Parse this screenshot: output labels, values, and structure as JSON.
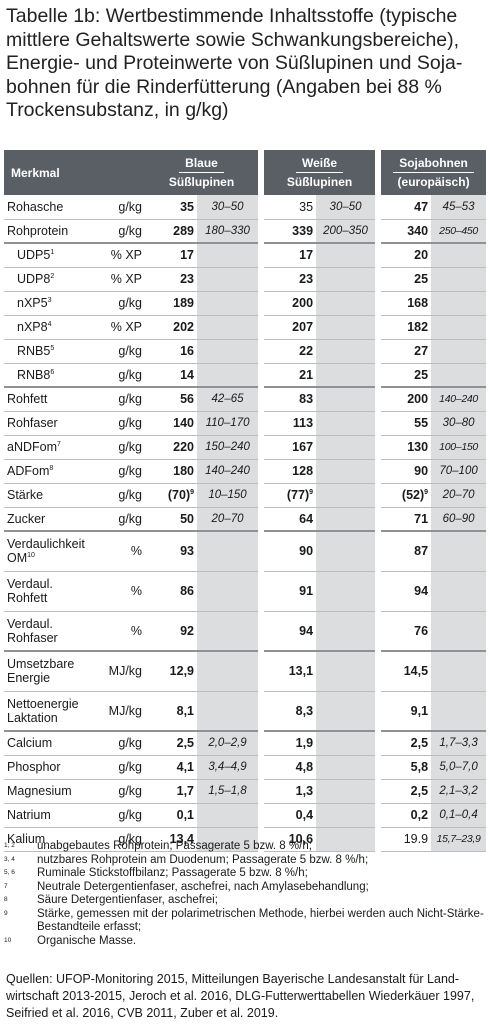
{
  "title": "Tabelle 1b: Wertbestimmende Inhaltsstoffe (typische mittlere Gehaltswerte sowie Schwankungsbereiche), Energie- und Proteinwerte von Süßlupinen und Soja-bohnen für die Rinderfütterung (Angaben bei 88 % Trockensubstanz, in g/kg)",
  "header": {
    "merkmal": "Merkmal",
    "col1_line1": "Blaue",
    "col1_line2": "Süßlupinen",
    "col2_line1": "Weiße",
    "col2_line2": "Süßlupinen",
    "col3_line1": "Sojabohnen",
    "col3_line2": "(europäisch)"
  },
  "rows": [
    {
      "name": "Rohasche",
      "unit": "g/kg",
      "v1": "35",
      "r1": "30–50",
      "v2": "35",
      "r2": "30–50",
      "v3": "47",
      "r3": "45–53"
    },
    {
      "name": "Rohprotein",
      "unit": "g/kg",
      "v1": "289",
      "r1": "180–330",
      "v2": "339",
      "r2": "200–350",
      "v3": "340",
      "r3": "250–450"
    },
    {
      "name": "UDP5",
      "sup": "1",
      "unit": "% XP",
      "v1": "17",
      "r1": "",
      "v2": "17",
      "r2": "",
      "v3": "20",
      "r3": ""
    },
    {
      "name": "UDP8",
      "sup": "2",
      "unit": "% XP",
      "v1": "23",
      "r1": "",
      "v2": "23",
      "r2": "",
      "v3": "25",
      "r3": ""
    },
    {
      "name": "nXP5",
      "sup": "3",
      "unit": "g/kg",
      "v1": "189",
      "r1": "",
      "v2": "200",
      "r2": "",
      "v3": "168",
      "r3": ""
    },
    {
      "name": "nXP8",
      "sup": "4",
      "unit": "% XP",
      "v1": "202",
      "r1": "",
      "v2": "207",
      "r2": "",
      "v3": "182",
      "r3": ""
    },
    {
      "name": "RNB5",
      "sup": "5",
      "unit": "g/kg",
      "v1": "16",
      "r1": "",
      "v2": "22",
      "r2": "",
      "v3": "27",
      "r3": ""
    },
    {
      "name": "RNB8",
      "sup": "6",
      "unit": "g/kg",
      "v1": "14",
      "r1": "",
      "v2": "21",
      "r2": "",
      "v3": "25",
      "r3": ""
    },
    {
      "name": "Rohfett",
      "unit": "g/kg",
      "v1": "56",
      "r1": "42–65",
      "v2": "83",
      "r2": "",
      "v3": "200",
      "r3": "140–240"
    },
    {
      "name": "Rohfaser",
      "unit": "g/kg",
      "v1": "140",
      "r1": "110–170",
      "v2": "113",
      "r2": "",
      "v3": "55",
      "r3": "30–80"
    },
    {
      "name": "aNDFom",
      "sup": "7",
      "unit": "g/kg",
      "v1": "220",
      "r1": "150–240",
      "v2": "167",
      "r2": "",
      "v3": "130",
      "r3": "100–150"
    },
    {
      "name": "ADFom",
      "sup": "8",
      "unit": "g/kg",
      "v1": "180",
      "r1": "140–240",
      "v2": "128",
      "r2": "",
      "v3": "90",
      "r3": "70–100"
    },
    {
      "name": "Stärke",
      "unit": "g/kg",
      "v1": "(70)",
      "v1sup": "9",
      "r1": "10–150",
      "v2": "(77)",
      "v2sup": "9",
      "r2": "",
      "v3": "(52)",
      "v3sup": "9",
      "r3": "20–70"
    },
    {
      "name": "Zucker",
      "unit": "g/kg",
      "v1": "50",
      "r1": "20–70",
      "v2": "64",
      "r2": "",
      "v3": "71",
      "r3": "60–90"
    },
    {
      "name": "Verdaulichkeit",
      "name2": "OM",
      "sup2": "10",
      "unit": "%",
      "v1": "93",
      "r1": "",
      "v2": "90",
      "r2": "",
      "v3": "87",
      "r3": ""
    },
    {
      "name": "Verdaul.",
      "name2": "Rohfett",
      "unit": "%",
      "v1": "86",
      "r1": "",
      "v2": "91",
      "r2": "",
      "v3": "94",
      "r3": ""
    },
    {
      "name": "Verdaul.",
      "name2": "Rohfaser",
      "unit": "%",
      "v1": "92",
      "r1": "",
      "v2": "94",
      "r2": "",
      "v3": "76",
      "r3": ""
    },
    {
      "name": "Umsetzbare",
      "name2": "Energie",
      "unit": "MJ/kg",
      "v1": "12,9",
      "r1": "",
      "v2": "13,1",
      "r2": "",
      "v3": "14,5",
      "r3": ""
    },
    {
      "name": "Nettoenergie",
      "name2": "Laktation",
      "unit": "MJ/kg",
      "v1": "8,1",
      "r1": "",
      "v2": "8,3",
      "r2": "",
      "v3": "9,1",
      "r3": ""
    },
    {
      "name": "Calcium",
      "unit": "g/kg",
      "v1": "2,5",
      "r1": "2,0–2,9",
      "v2": "1,9",
      "r2": "",
      "v3": "2,5",
      "r3": "1,7–3,3"
    },
    {
      "name": "Phosphor",
      "unit": "g/kg",
      "v1": "4,1",
      "r1": "3,4–4,9",
      "v2": "4,8",
      "r2": "",
      "v3": "5,8",
      "r3": "5,0–7,0"
    },
    {
      "name": "Magnesium",
      "unit": "g/kg",
      "v1": "1,7",
      "r1": "1,5–1,8",
      "v2": "1,3",
      "r2": "",
      "v3": "2,5",
      "r3": "2,1–3,2"
    },
    {
      "name": "Natrium",
      "unit": "g/kg",
      "v1": "0,1",
      "r1": "",
      "v2": "0,4",
      "r2": "",
      "v3": "0,2",
      "r3": "0,1–0,4"
    },
    {
      "name": "Kalium",
      "unit": "g/kg",
      "v1": "13,4",
      "r1": "",
      "v2": "10,6",
      "r2": "",
      "v3": "19.9",
      "r3": "15,7–23,9"
    }
  ],
  "footnotes": [
    {
      "key": "1, 2",
      "text": "unabgebautes Rohprotein; Passagerate 5 bzw. 8 %/h;"
    },
    {
      "key": "3, 4",
      "text": "nutzbares Rohprotein am Duodenum; Passagerate 5 bzw. 8 %/h;"
    },
    {
      "key": "5, 6",
      "text": "Ruminale Stickstoffbilanz; Passagerate 5 bzw. 8 %/h;"
    },
    {
      "key": "7",
      "text": "Neutrale Detergentienfaser, aschefrei, nach Amylasebehandlung;"
    },
    {
      "key": "8",
      "text": "Säure Detergentienfaser, aschefrei;"
    },
    {
      "key": "9",
      "text": "Stärke, gemessen mit der polarimetrischen Methode, hierbei werden auch Nicht-Stärke-Bestandteile erfasst;"
    },
    {
      "key": "10",
      "text": "Organische Masse."
    }
  ],
  "sources": "Quellen: UFOP-Monitoring 2015, Mitteilungen Bayerische Landesanstalt für Land-wirtschaft 2013-2015, Jeroch et al. 2016, DLG-Futterwerttabellen Wiederkäuer 1997, Seifried et al. 2016, CVB 2011, Zuber et al. 2019."
}
